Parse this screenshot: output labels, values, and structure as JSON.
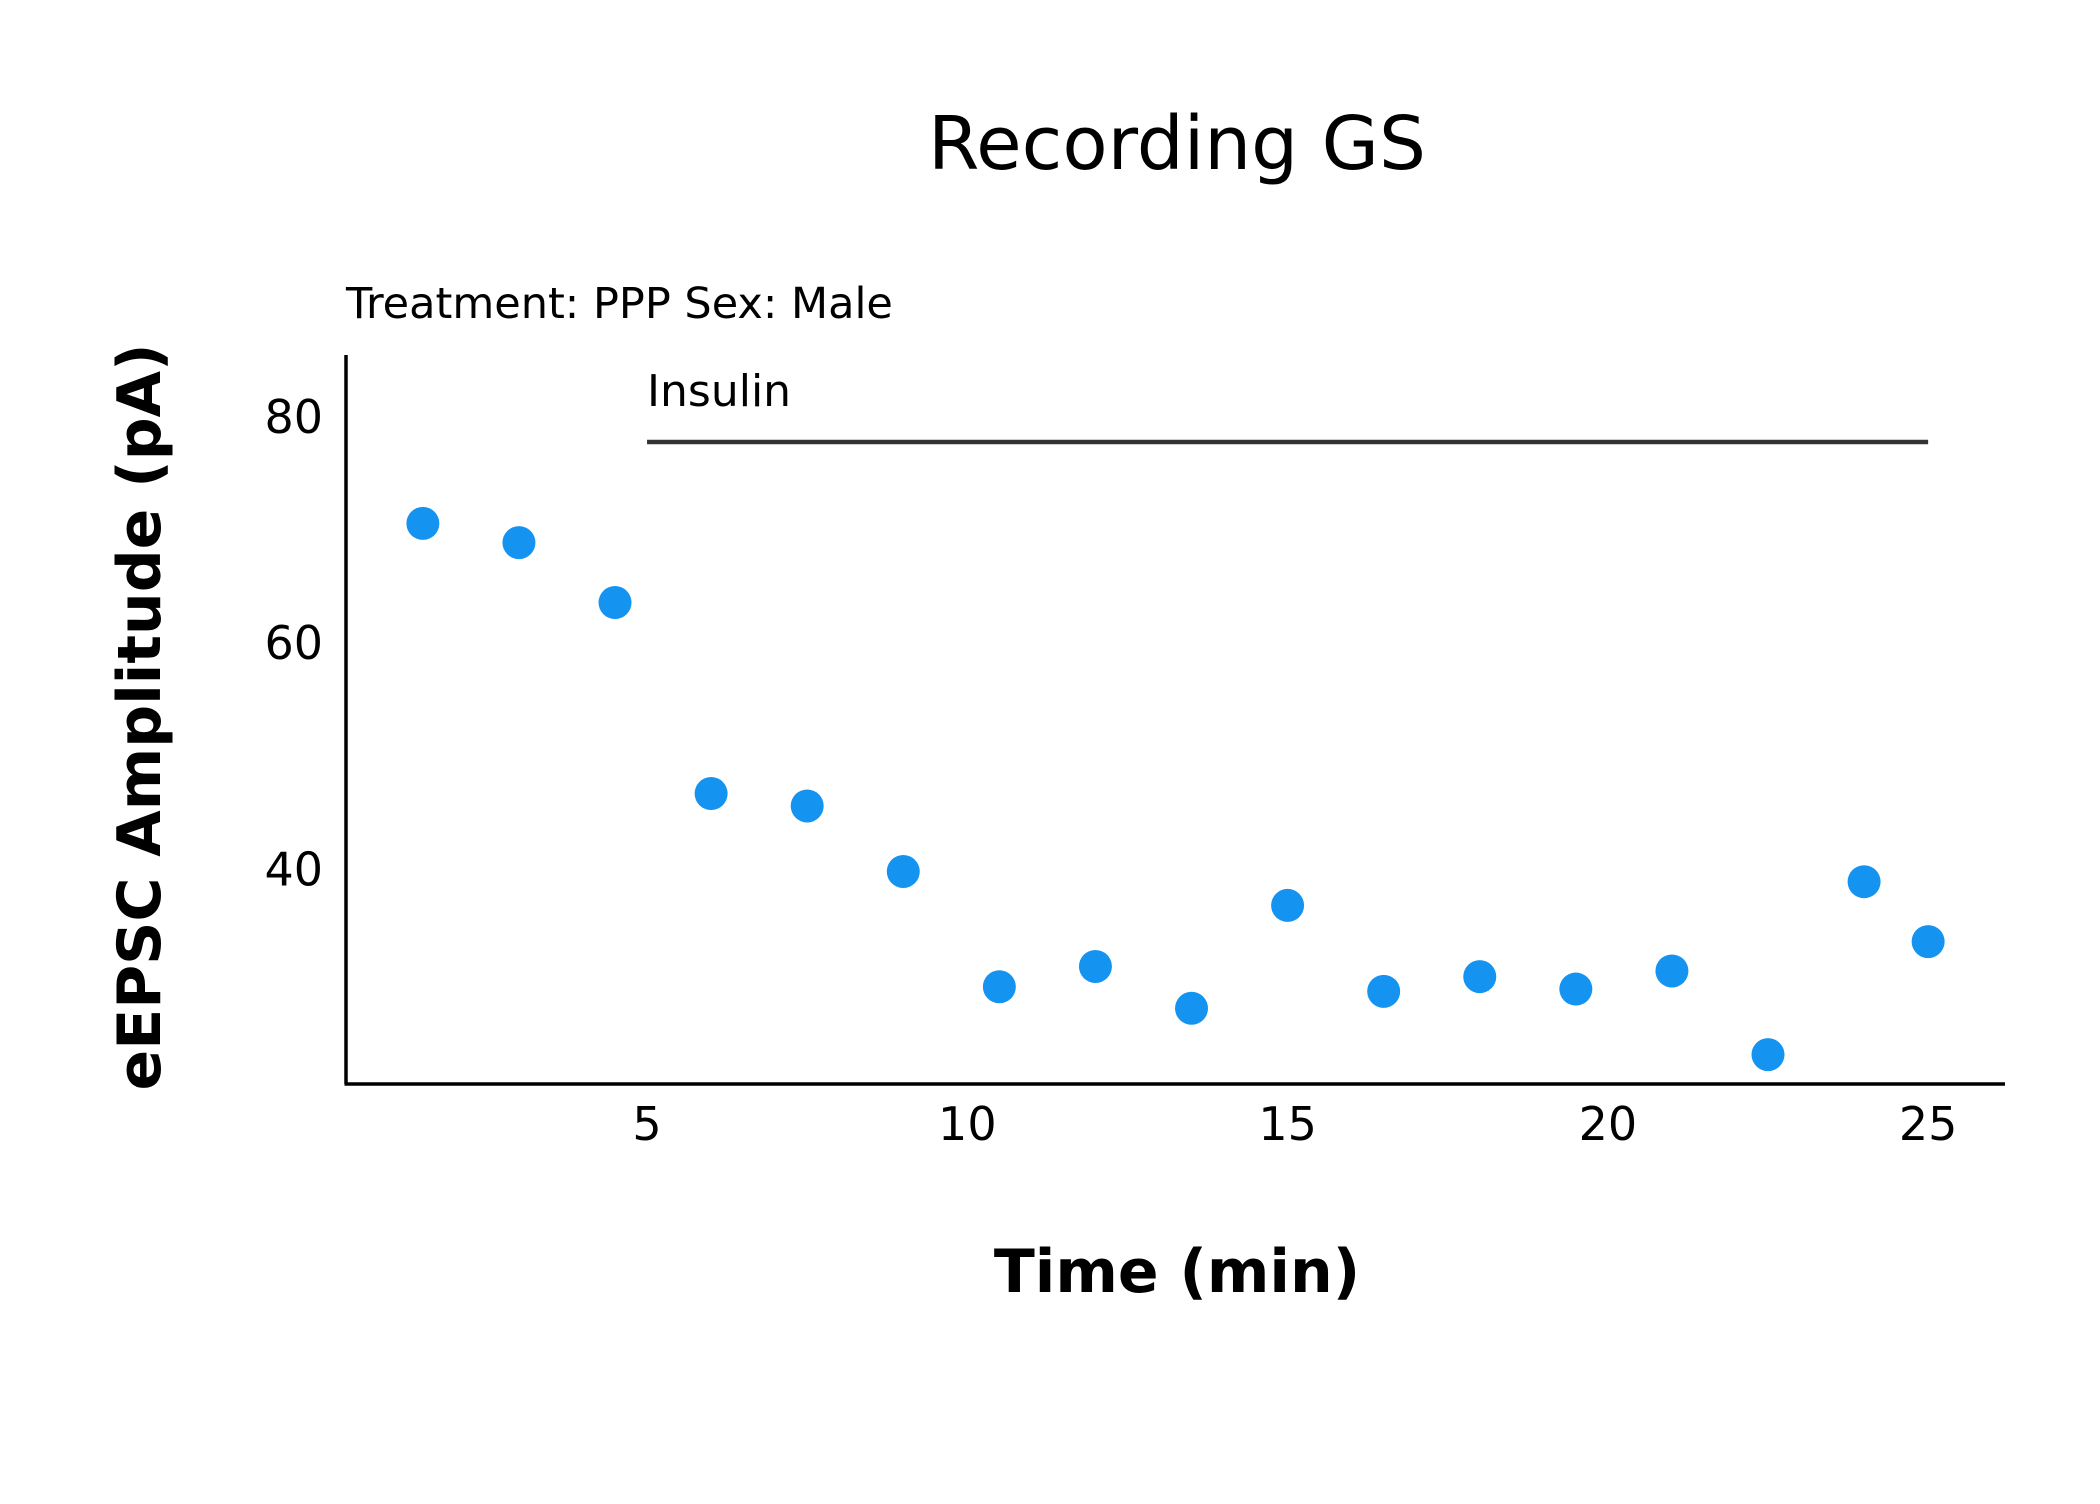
{
  "chart_data": {
    "type": "scatter",
    "title": "Recording GS",
    "subtitle": "Treatment: PPP  Sex: Male",
    "xlabel": "Time (min)",
    "ylabel": "eEPSC Amplitude (pA)",
    "xlim": [
      0.3,
      26.2
    ],
    "ylim": [
      21,
      85.5
    ],
    "x_ticks": [
      5,
      10,
      15,
      20,
      25
    ],
    "y_ticks": [
      40,
      60,
      80
    ],
    "grid": false,
    "colors": {
      "points": "#1593f0",
      "axis": "#000000",
      "bar": "#333333"
    },
    "annotation": {
      "label": "Insulin",
      "x_start": 5,
      "x_end": 25,
      "y": 77.8
    },
    "points": [
      {
        "x": 1.5,
        "y": 70.6
      },
      {
        "x": 3.0,
        "y": 68.9
      },
      {
        "x": 4.5,
        "y": 63.6
      },
      {
        "x": 6.0,
        "y": 46.7
      },
      {
        "x": 7.5,
        "y": 45.6
      },
      {
        "x": 9.0,
        "y": 39.8
      },
      {
        "x": 10.5,
        "y": 29.6
      },
      {
        "x": 12.0,
        "y": 31.4
      },
      {
        "x": 13.5,
        "y": 27.7
      },
      {
        "x": 15.0,
        "y": 36.8
      },
      {
        "x": 16.5,
        "y": 29.2
      },
      {
        "x": 18.0,
        "y": 30.5
      },
      {
        "x": 19.5,
        "y": 29.4
      },
      {
        "x": 21.0,
        "y": 31.0
      },
      {
        "x": 22.5,
        "y": 23.6
      },
      {
        "x": 24.0,
        "y": 38.9
      },
      {
        "x": 25.0,
        "y": 33.6
      }
    ]
  }
}
